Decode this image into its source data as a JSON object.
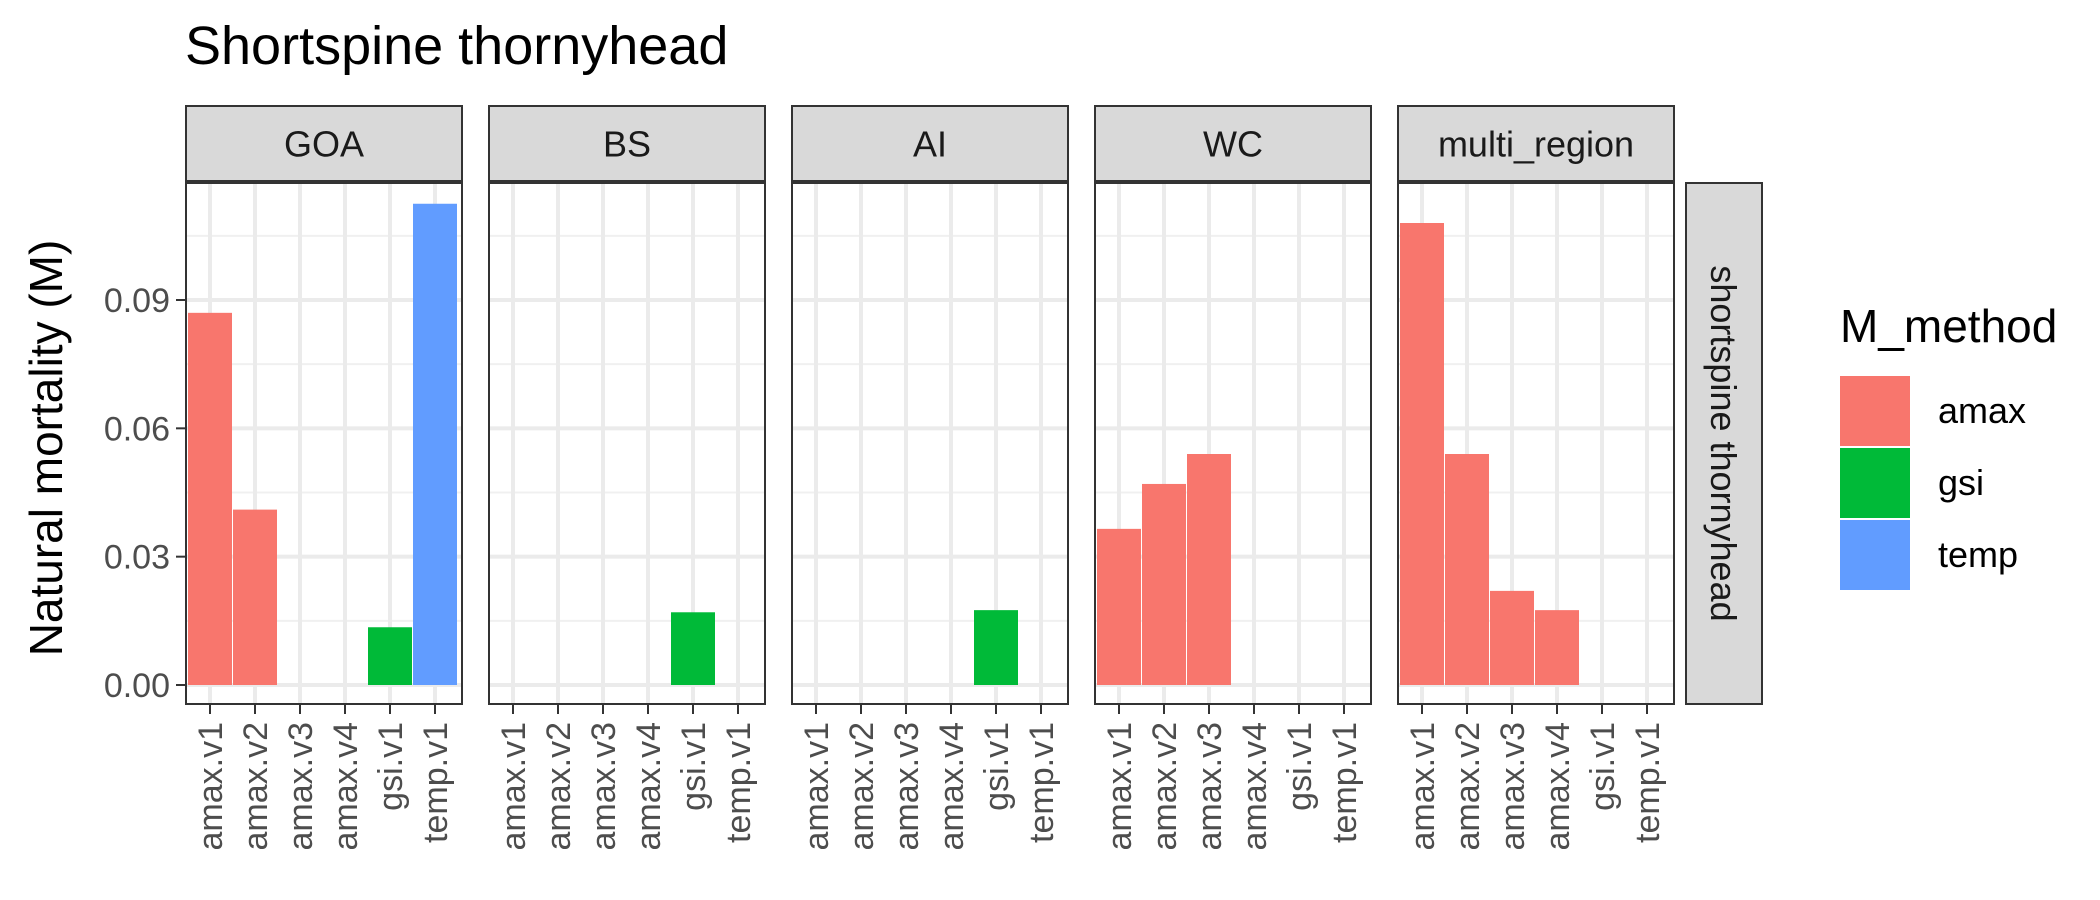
{
  "chart_data": {
    "type": "bar",
    "title": "Shortspine thornyhead",
    "ylabel": "Natural mortality (M)",
    "xlabel": "",
    "facet_row_label": "shortspine thornyhead",
    "categories": [
      "amax.v1",
      "amax.v2",
      "amax.v3",
      "amax.v4",
      "gsi.v1",
      "temp.v1"
    ],
    "y_ticks": [
      0.0,
      0.03,
      0.06,
      0.09
    ],
    "y_tick_labels": [
      "0.00",
      "0.03",
      "0.06",
      "0.09"
    ],
    "ylim": [
      -0.005,
      0.1175
    ],
    "grid": true,
    "legend": {
      "title": "M_method",
      "placement": "right",
      "items": [
        {
          "name": "amax",
          "color": "#F8766D"
        },
        {
          "name": "gsi",
          "color": "#00BA38"
        },
        {
          "name": "temp",
          "color": "#619CFF"
        }
      ]
    },
    "category_method": [
      "amax",
      "amax",
      "amax",
      "amax",
      "gsi",
      "temp"
    ],
    "panels": [
      {
        "name": "GOA",
        "values": [
          0.087,
          0.041,
          null,
          null,
          0.0135,
          0.1125
        ]
      },
      {
        "name": "BS",
        "values": [
          null,
          null,
          null,
          null,
          0.017,
          null
        ]
      },
      {
        "name": "AI",
        "values": [
          null,
          null,
          null,
          null,
          0.0175,
          null
        ]
      },
      {
        "name": "WC",
        "values": [
          0.0365,
          0.047,
          0.054,
          null,
          null,
          null
        ]
      },
      {
        "name": "multi_region",
        "values": [
          0.108,
          0.054,
          0.022,
          0.0175,
          null,
          null
        ]
      }
    ]
  }
}
